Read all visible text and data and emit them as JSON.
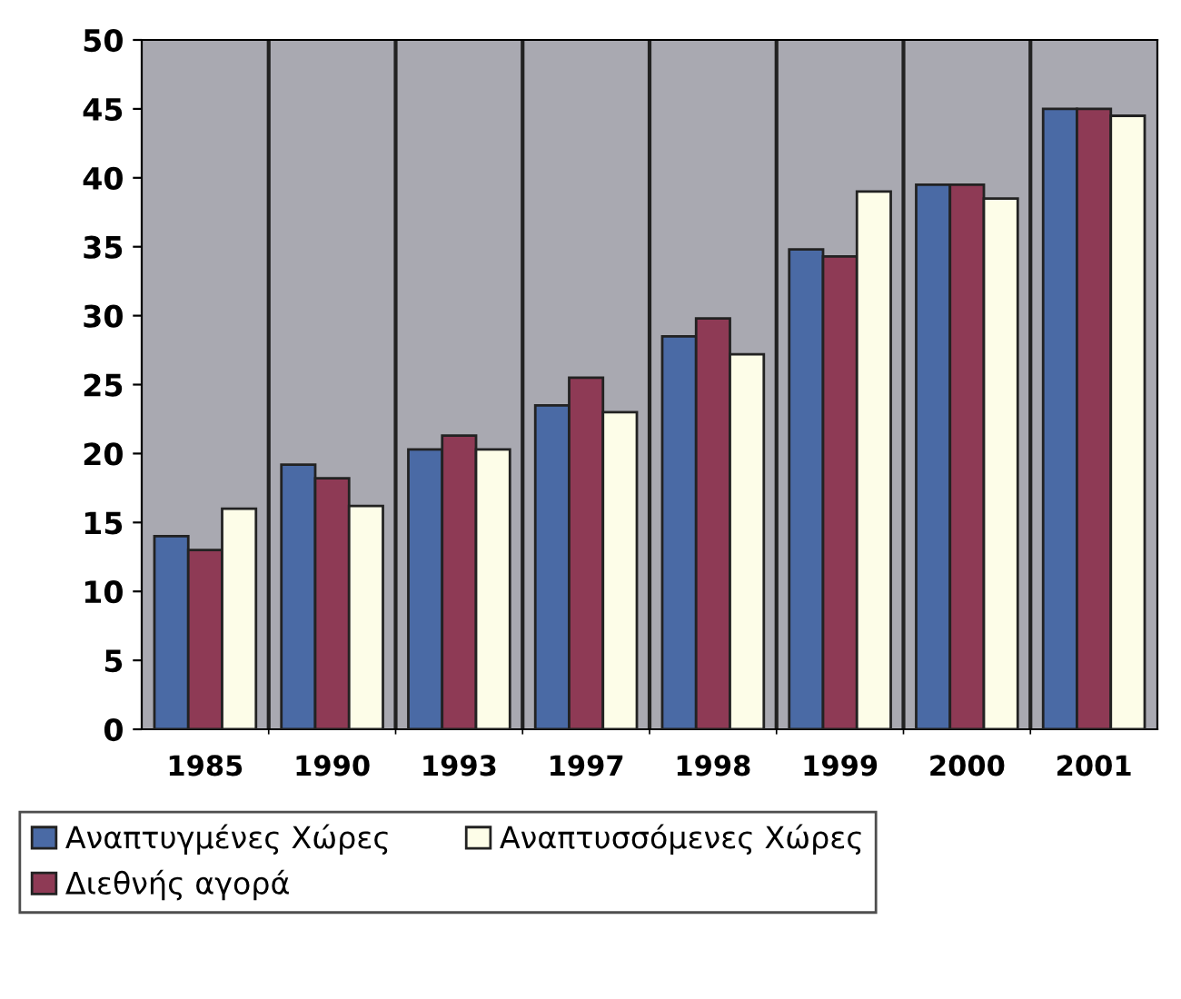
{
  "chart_data": {
    "type": "bar",
    "categories": [
      "1985",
      "1990",
      "1993",
      "1997",
      "1998",
      "1999",
      "2000",
      "2001"
    ],
    "series": [
      {
        "name": "Αναπτυγμένες Χώρες",
        "color": "#4a6aa5",
        "values": [
          14,
          19.2,
          20.3,
          23.5,
          28.5,
          34.8,
          39.5,
          45
        ]
      },
      {
        "name": "Διεθνής αγορά",
        "color": "#8e3a55",
        "values": [
          13,
          18.2,
          21.3,
          25.5,
          29.8,
          34.3,
          39.5,
          45
        ]
      },
      {
        "name": "Αναπτυσσόμενες Χώρες",
        "color": "#fdfde8",
        "values": [
          16,
          16.2,
          20.3,
          23,
          27.2,
          39,
          38.5,
          44.5
        ]
      }
    ],
    "ylim": [
      0,
      50
    ],
    "yticks": [
      0,
      5,
      10,
      15,
      20,
      25,
      30,
      35,
      40,
      45,
      50
    ],
    "grid": "x",
    "legend": "bottom"
  }
}
